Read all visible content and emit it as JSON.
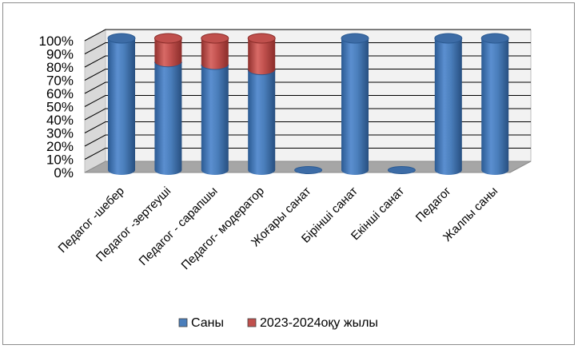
{
  "chart_data": {
    "type": "bar",
    "stacked": true,
    "percent": true,
    "three_d": "cylinder",
    "categories": [
      "Педагог -шебер",
      "Педагог -зертеуші",
      "Педагог - сарапшы",
      "Педагог- модератор",
      "Жоғары санат",
      "Бірінші санат",
      "Екінші санат",
      "Педагог",
      "Жалпы саны"
    ],
    "series": [
      {
        "name": "Саны",
        "values": [
          100,
          82,
          80,
          76,
          0,
          100,
          0,
          100,
          100
        ]
      },
      {
        "name": "2023-2024оқу жылы",
        "values": [
          0,
          18,
          20,
          24,
          0,
          0,
          0,
          0,
          0
        ]
      }
    ],
    "yticks": [
      "0%",
      "10%",
      "20%",
      "30%",
      "40%",
      "50%",
      "60%",
      "70%",
      "80%",
      "90%",
      "100%"
    ],
    "ylim": [
      0,
      100
    ],
    "grid": true,
    "legend": "bottom",
    "colors": {
      "series1": "#4a7ebb",
      "series2": "#c0504d",
      "floor": "#a6a6a6",
      "wall": "#f2f2f2",
      "grid": "#000000"
    }
  }
}
